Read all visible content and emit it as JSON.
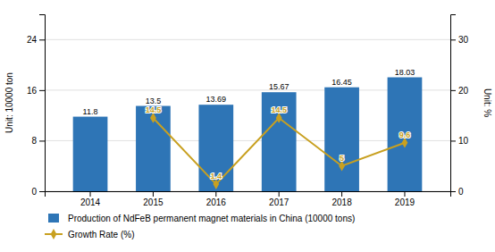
{
  "chart_data": {
    "type": "bar",
    "categories": [
      "2014",
      "2015",
      "2016",
      "2017",
      "2018",
      "2019"
    ],
    "series": [
      {
        "name": "Production of NdFeB permanent magnet materials in China (10000 tons)",
        "type": "bar",
        "color": "#2E75B6",
        "values": [
          11.8,
          13.5,
          13.69,
          15.67,
          16.45,
          18.03
        ]
      },
      {
        "name": "Growth Rate (%)",
        "type": "line",
        "axis": "y2",
        "color": "#C8A020",
        "marker": "diamond",
        "values": [
          null,
          14.5,
          1.4,
          14.5,
          5.0,
          9.6
        ]
      }
    ],
    "ylabel": "Unit: 10000 ton",
    "y2label": "Unit: %",
    "ylim": [
      0,
      28
    ],
    "yticks": [
      0,
      8,
      16,
      24
    ],
    "y2lim": [
      0,
      35
    ],
    "y2ticks": [
      0,
      10,
      20,
      30
    ],
    "grid": true,
    "data_labels": true,
    "legend": "bottom"
  }
}
